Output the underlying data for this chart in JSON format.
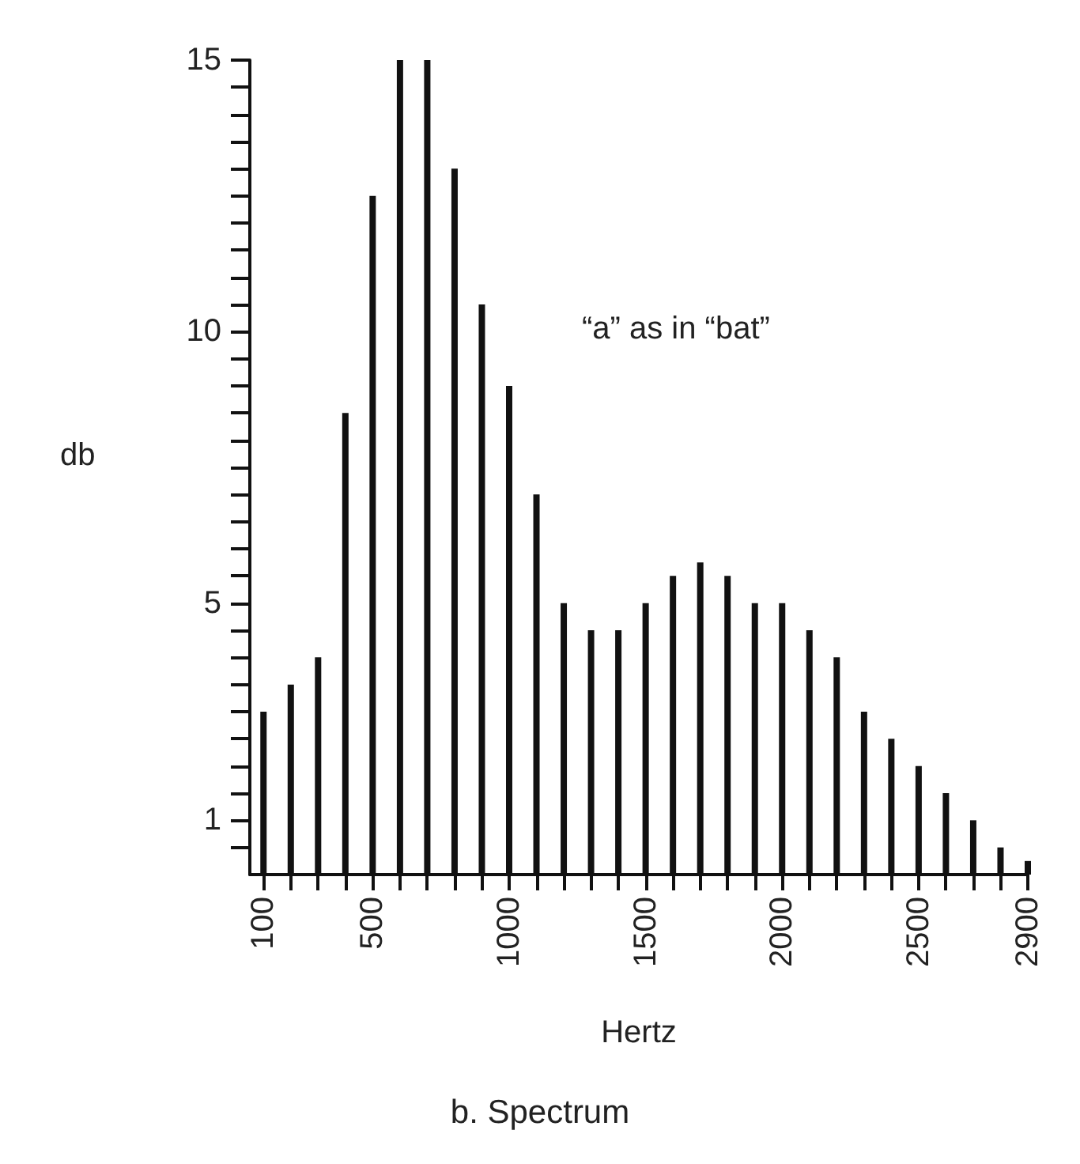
{
  "chart_data": {
    "type": "bar",
    "title": "b. Spectrum",
    "xlabel": "Hertz",
    "ylabel": "db",
    "annotations": [
      "“a” as in “bat”"
    ],
    "x": [
      100,
      200,
      300,
      400,
      500,
      600,
      700,
      800,
      900,
      1000,
      1100,
      1200,
      1300,
      1400,
      1500,
      1600,
      1700,
      1800,
      1900,
      2000,
      2100,
      2200,
      2300,
      2400,
      2500,
      2600,
      2700,
      2800,
      2900
    ],
    "values": [
      3.0,
      3.5,
      4.0,
      8.5,
      12.5,
      15,
      15,
      13.0,
      10.5,
      9.0,
      7.0,
      5.0,
      4.5,
      4.5,
      5.0,
      5.5,
      5.75,
      5.5,
      5.0,
      5.0,
      4.5,
      4.0,
      3.0,
      2.5,
      2.0,
      1.5,
      1.0,
      0.5,
      0.25
    ],
    "color": "#111111",
    "xlim": [
      50,
      2900
    ],
    "ylim": [
      0,
      15
    ],
    "xticks": [
      100,
      {
        "value": 200,
        "label": null
      },
      {
        "value": 300,
        "label": null
      },
      {
        "value": 400,
        "label": null
      },
      500,
      {
        "value": 600,
        "label": null
      },
      {
        "value": 700,
        "label": null
      },
      {
        "value": 800,
        "label": null
      },
      {
        "value": 900,
        "label": null
      },
      1000,
      {
        "value": 1100,
        "label": null
      },
      {
        "value": 1200,
        "label": null
      },
      {
        "value": 1300,
        "label": null
      },
      {
        "value": 1400,
        "label": null
      },
      1500,
      {
        "value": 1600,
        "label": null
      },
      {
        "value": 1700,
        "label": null
      },
      {
        "value": 1800,
        "label": null
      },
      {
        "value": 1900,
        "label": null
      },
      2000,
      {
        "value": 2100,
        "label": null
      },
      {
        "value": 2200,
        "label": null
      },
      {
        "value": 2300,
        "label": null
      },
      {
        "value": 2400,
        "label": null
      },
      2500,
      {
        "value": 2600,
        "label": null
      },
      {
        "value": 2700,
        "label": null
      },
      {
        "value": 2800,
        "label": null
      },
      2900
    ],
    "yticks": [
      {
        "value": 0.5,
        "label": null
      },
      1,
      {
        "value": 1.5,
        "label": null
      },
      {
        "value": 2,
        "label": null
      },
      {
        "value": 2.5,
        "label": null
      },
      {
        "value": 3,
        "label": null
      },
      {
        "value": 3.5,
        "label": null
      },
      {
        "value": 4,
        "label": null
      },
      {
        "value": 4.5,
        "label": null
      },
      5,
      {
        "value": 5.5,
        "label": null
      },
      {
        "value": 6,
        "label": null
      },
      {
        "value": 6.5,
        "label": null
      },
      {
        "value": 7,
        "label": null
      },
      {
        "value": 7.5,
        "label": null
      },
      {
        "value": 8,
        "label": null
      },
      {
        "value": 8.5,
        "label": null
      },
      {
        "value": 9,
        "label": null
      },
      {
        "value": 9.5,
        "label": null
      },
      10,
      {
        "value": 10.5,
        "label": null
      },
      {
        "value": 11,
        "label": null
      },
      {
        "value": 11.5,
        "label": null
      },
      {
        "value": 12,
        "label": null
      },
      {
        "value": 12.5,
        "label": null
      },
      {
        "value": 13,
        "label": null
      },
      {
        "value": 13.5,
        "label": null
      },
      {
        "value": 14,
        "label": null
      },
      {
        "value": 14.5,
        "label": null
      },
      15
    ],
    "grid": false
  }
}
